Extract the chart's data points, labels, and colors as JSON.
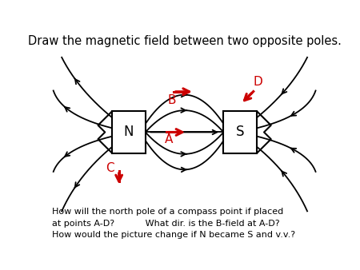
{
  "title": "Draw the magnetic field between two opposite poles.",
  "bottom_lines": [
    "How will the north pole of a compass point if placed",
    "at points A-D?           What dir. is the B-field at A-D?",
    "How would the picture change if N became S and v.v.?"
  ],
  "N_label": "N",
  "S_label": "S",
  "Nx": 0.3,
  "Ny": 0.52,
  "Sx": 0.7,
  "Sy": 0.52,
  "mw": 0.12,
  "mh": 0.2,
  "line_color": "#000000",
  "red_color": "#cc0000",
  "bg_color": "#ffffff",
  "point_A": [
    0.455,
    0.52
  ],
  "point_B": [
    0.48,
    0.715
  ],
  "point_C": [
    0.265,
    0.315
  ],
  "point_D": [
    0.735,
    0.7
  ]
}
